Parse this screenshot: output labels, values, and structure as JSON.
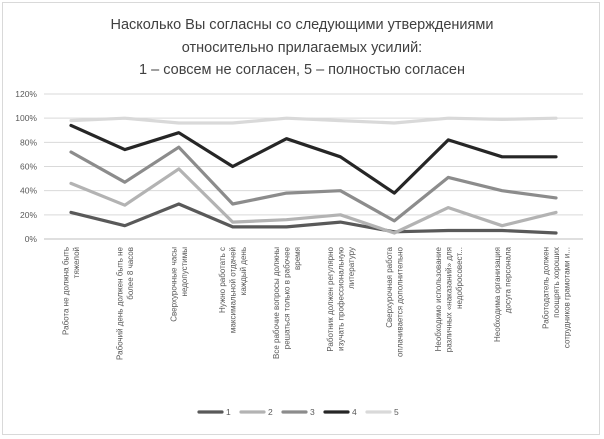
{
  "chart_data": {
    "type": "line",
    "title_lines": [
      "Насколько Вы согласны со следующими утверждениями",
      "относительно прилагаемых усилий:",
      "1 – совсем не согласен, 5 – полностью согласен"
    ],
    "y_ticks": [
      "0%",
      "20%",
      "40%",
      "60%",
      "80%",
      "100%",
      "120%"
    ],
    "ylim": [
      0,
      120
    ],
    "grid": true,
    "legend_position": "bottom",
    "categories": [
      [
        "Работа не должна быть",
        "тяжелой"
      ],
      [
        "Рабочий день должен быть не",
        "более 8 часов"
      ],
      [
        "Сверхурочные часы",
        "недопустимы"
      ],
      [
        "Нужно работать с",
        "максимальной отдачей",
        "каждый день"
      ],
      [
        "Все рабочие вопросы должны",
        "решаться только в рабочее",
        "время"
      ],
      [
        "Работник должен регулярно",
        "изучать профессиональную",
        "литературу"
      ],
      [
        "Сверхурочная работа",
        "оплачивается дополнительно"
      ],
      [
        "Необходимо использование",
        "различных «наказаний» для",
        "недобросовест..."
      ],
      [
        "Необходима организация",
        "досуга персонала"
      ],
      [
        "Работодатель должен",
        "поощрять хороших",
        "сотрудников грамотами и..."
      ]
    ],
    "series": [
      {
        "name": "1",
        "color": "#595959",
        "values": [
          22,
          11,
          29,
          10,
          10,
          14,
          6,
          7,
          7,
          5
        ]
      },
      {
        "name": "2",
        "color": "#b3b3b3",
        "values": [
          46,
          28,
          58,
          14,
          16,
          20,
          5,
          26,
          11,
          22
        ]
      },
      {
        "name": "3",
        "color": "#8c8c8c",
        "values": [
          72,
          47,
          76,
          29,
          38,
          40,
          15,
          51,
          40,
          34
        ]
      },
      {
        "name": "4",
        "color": "#262626",
        "values": [
          94,
          74,
          88,
          60,
          83,
          68,
          38,
          82,
          68,
          68
        ]
      },
      {
        "name": "5",
        "color": "#d9d9d9",
        "values": [
          98,
          100,
          96,
          96,
          100,
          98,
          96,
          100,
          99,
          100
        ]
      }
    ]
  }
}
